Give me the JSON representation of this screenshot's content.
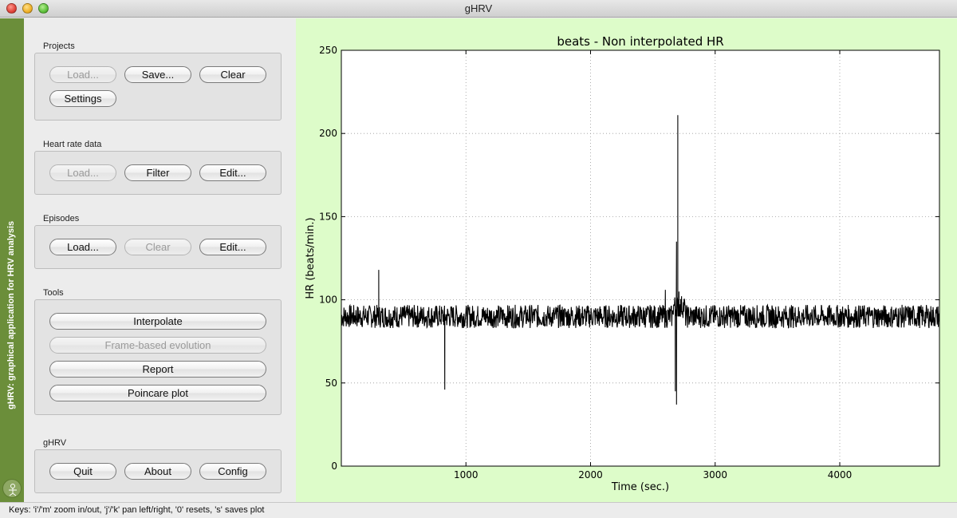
{
  "window": {
    "title": "gHRV"
  },
  "side_strip": {
    "text": "gHRV: graphical application for HRV analysis"
  },
  "projects": {
    "label": "Projects",
    "load": "Load...",
    "save": "Save...",
    "clear": "Clear",
    "settings": "Settings"
  },
  "heart_rate": {
    "label": "Heart rate data",
    "load": "Load...",
    "filter": "Filter",
    "edit": "Edit..."
  },
  "episodes": {
    "label": "Episodes",
    "load": "Load...",
    "clear": "Clear",
    "edit": "Edit..."
  },
  "tools": {
    "label": "Tools",
    "interpolate": "Interpolate",
    "frame_based": "Frame-based evolution",
    "report": "Report",
    "poincare": "Poincare plot"
  },
  "ghrv": {
    "label": "gHRV",
    "quit": "Quit",
    "about": "About",
    "config": "Config"
  },
  "status": {
    "text": "Keys: 'i'/'m' zoom in/out, 'j'/'k' pan left/right, '0' resets, 's' saves plot"
  },
  "colors": {
    "accent_strip": "#6b8e3a",
    "plot_background": "#ddfcc9"
  },
  "chart_data": {
    "type": "line",
    "title": "beats - Non interpolated HR",
    "xlabel": "Time (sec.)",
    "ylabel": "HR (beats/min.)",
    "xlim": [
      0,
      4800
    ],
    "ylim": [
      0,
      250
    ],
    "xticks": [
      1000,
      2000,
      3000,
      4000
    ],
    "yticks": [
      0,
      50,
      100,
      150,
      200,
      250
    ],
    "grid": true,
    "series": [
      {
        "baseline_mean": 90,
        "x": [
          0,
          200,
          300,
          300,
          310,
          500,
          830,
          830,
          840,
          1000,
          1500,
          2000,
          2500,
          2600,
          2600,
          2620,
          2680,
          2680,
          2690,
          2690,
          2700,
          2700,
          2710,
          2720,
          2750,
          3000,
          3500,
          4000,
          4500,
          4800
        ],
        "y": [
          90,
          90,
          90,
          118,
          88,
          90,
          90,
          46,
          92,
          90,
          88,
          90,
          90,
          90,
          106,
          88,
          88,
          45,
          135,
          37,
          211,
          108,
          105,
          95,
          95,
          90,
          89,
          90,
          88,
          90
        ]
      }
    ]
  }
}
